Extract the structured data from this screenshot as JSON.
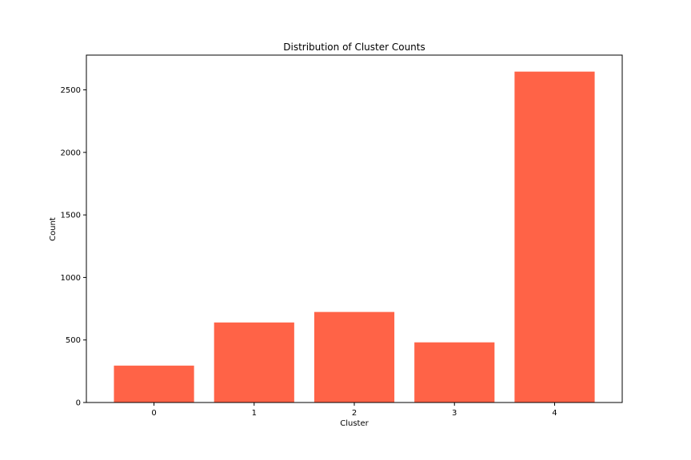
{
  "chart_data": {
    "type": "bar",
    "title": "Distribution of Cluster Counts",
    "xlabel": "Cluster",
    "ylabel": "Count",
    "categories": [
      "0",
      "1",
      "2",
      "3",
      "4"
    ],
    "values": [
      295,
      640,
      724,
      481,
      2646
    ],
    "ylim": [
      0,
      2778
    ],
    "yticks": [
      0,
      500,
      1000,
      1500,
      2000,
      2500
    ],
    "bar_color": "#ff6347",
    "grid": false,
    "legend": "none"
  }
}
